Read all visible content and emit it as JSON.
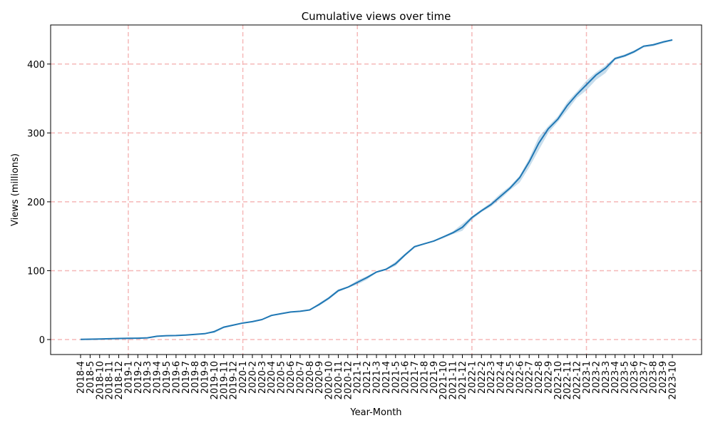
{
  "chart_data": {
    "type": "line",
    "title": "Cumulative views over time",
    "xlabel": "Year-Month",
    "ylabel": "Views (millions)",
    "ylim": [
      -21.75,
      456.75
    ],
    "yticks": [
      0,
      100,
      200,
      300,
      400
    ],
    "grid": true,
    "colors": {
      "line": "#1f77b4",
      "band": "#1f77b4",
      "grid": "#f5b8b8"
    },
    "categories": [
      "2018-4",
      "2018-5",
      "2018-10",
      "2018-11",
      "2018-12",
      "2019-1",
      "2019-2",
      "2019-3",
      "2019-4",
      "2019-5",
      "2019-6",
      "2019-7",
      "2019-8",
      "2019-9",
      "2019-10",
      "2019-11",
      "2019-12",
      "2020-1",
      "2020-2",
      "2020-3",
      "2020-4",
      "2020-5",
      "2020-6",
      "2020-7",
      "2020-8",
      "2020-9",
      "2020-10",
      "2020-11",
      "2020-12",
      "2021-1",
      "2021-2",
      "2021-3",
      "2021-4",
      "2021-5",
      "2021-6",
      "2021-7",
      "2021-8",
      "2021-9",
      "2021-10",
      "2021-11",
      "2021-12",
      "2022-1",
      "2022-2",
      "2022-3",
      "2022-4",
      "2022-5",
      "2022-6",
      "2022-7",
      "2022-8",
      "2022-9",
      "2022-10",
      "2022-11",
      "2022-12",
      "2023-1",
      "2023-2",
      "2023-3",
      "2023-4",
      "2023-5",
      "2023-6",
      "2023-7",
      "2023-8",
      "2023-9",
      "2023-10"
    ],
    "gridlines_at": [
      "2019-1",
      "2020-1",
      "2021-1",
      "2022-1",
      "2023-1"
    ],
    "series": [
      {
        "values": [
          0.2,
          0.5,
          0.8,
          1.2,
          1.6,
          1.8,
          2,
          2.5,
          4.8,
          5.6,
          5.8,
          6.5,
          7.5,
          8.5,
          11.5,
          18,
          21,
          24,
          26,
          29,
          35,
          37.5,
          40,
          41,
          43,
          51,
          60,
          71,
          76,
          83,
          90,
          98,
          102,
          110,
          123,
          135,
          139,
          143,
          149,
          155,
          163,
          177,
          187,
          196,
          208,
          220,
          235,
          258,
          285,
          306,
          320,
          340,
          356,
          370,
          384,
          394,
          408,
          412,
          418,
          426,
          428,
          432,
          435
        ],
        "lower": [
          0.2,
          0.5,
          0.8,
          1.2,
          1.6,
          1.8,
          2,
          2.5,
          4.8,
          5.6,
          5.8,
          6.5,
          7.5,
          8.5,
          9.5,
          16.5,
          20,
          23.5,
          25.5,
          28.5,
          34,
          37,
          39.5,
          41,
          43,
          49,
          58,
          69,
          75,
          80,
          87,
          97,
          101,
          107,
          121,
          133,
          138,
          142,
          147,
          153,
          158,
          174,
          185,
          193,
          204,
          217,
          228,
          250,
          275,
          300,
          316,
          333,
          351,
          362,
          377,
          387,
          406,
          410,
          416,
          424,
          426,
          430,
          434
        ],
        "upper": [
          0.2,
          0.5,
          0.8,
          1.2,
          1.6,
          1.8,
          2,
          2.5,
          4.8,
          5.6,
          5.8,
          6.5,
          7.5,
          8.5,
          13,
          19,
          21.5,
          24.5,
          26.5,
          29.5,
          35.5,
          38,
          40.5,
          41.5,
          43.5,
          53,
          62,
          73,
          77,
          86,
          92,
          99,
          103,
          113,
          125,
          136,
          140,
          144,
          150,
          157,
          168,
          179,
          189,
          199,
          212,
          223,
          238,
          263,
          294,
          310,
          324,
          345,
          360,
          376,
          388,
          398,
          410,
          414,
          420,
          427,
          429,
          433,
          436
        ]
      }
    ]
  }
}
